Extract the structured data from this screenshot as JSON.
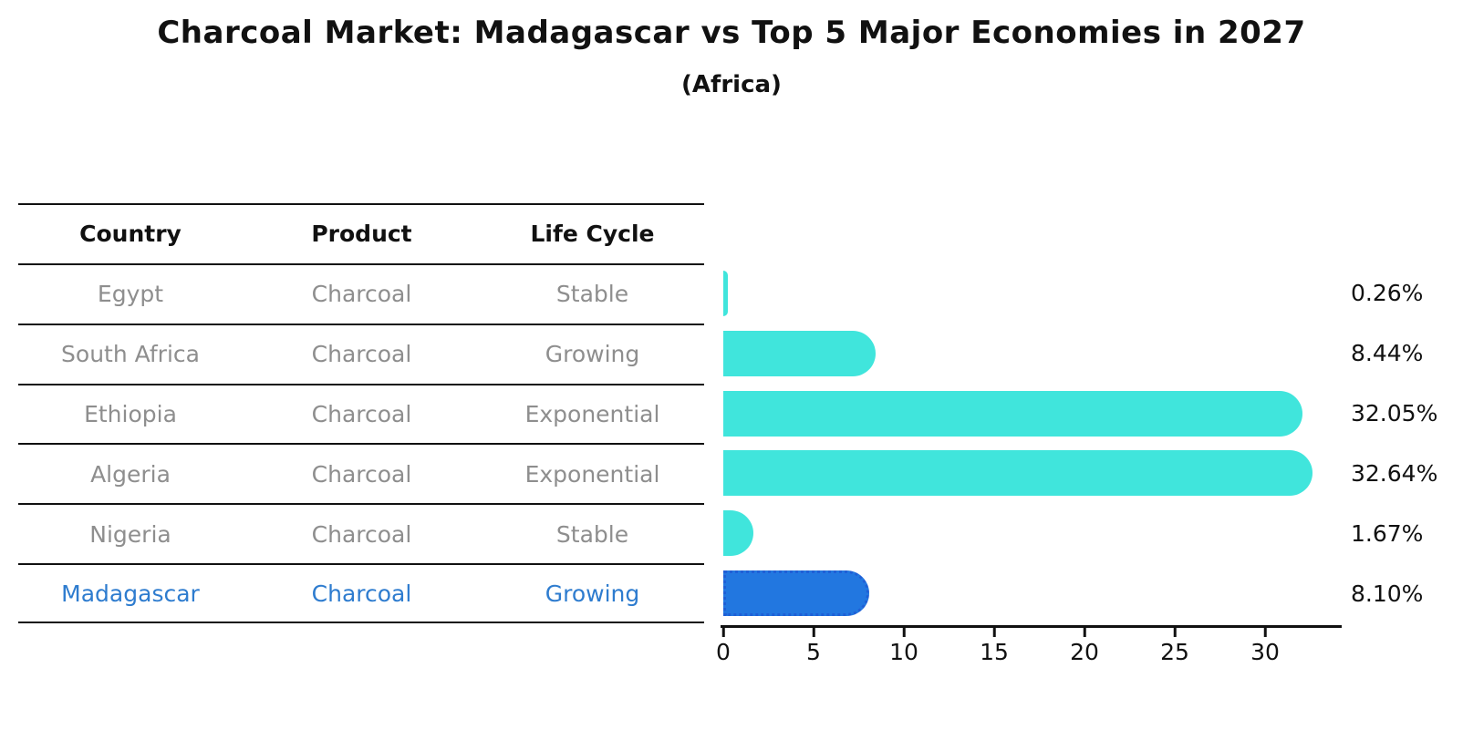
{
  "title": "Charcoal Market: Madagascar vs Top 5 Major Economies in 2027",
  "subtitle": "(Africa)",
  "table": {
    "headers": [
      "Country",
      "Product",
      "Life Cycle"
    ],
    "rows": [
      {
        "country": "Egypt",
        "product": "Charcoal",
        "life_cycle": "Stable",
        "highlight": false
      },
      {
        "country": "South Africa",
        "product": "Charcoal",
        "life_cycle": "Growing",
        "highlight": false
      },
      {
        "country": "Ethiopia",
        "product": "Charcoal",
        "life_cycle": "Exponential",
        "highlight": false
      },
      {
        "country": "Algeria",
        "product": "Charcoal",
        "life_cycle": "Exponential",
        "highlight": false
      },
      {
        "country": "Nigeria",
        "product": "Charcoal",
        "life_cycle": "Stable",
        "highlight": false
      },
      {
        "country": "Madagascar",
        "product": "Charcoal",
        "life_cycle": "Growing",
        "highlight": true
      }
    ]
  },
  "chart_data": {
    "type": "bar",
    "orientation": "horizontal",
    "title": "Charcoal Market: Madagascar vs Top 5 Major Economies in 2027",
    "subtitle": "(Africa)",
    "categories": [
      "Egypt",
      "South Africa",
      "Ethiopia",
      "Algeria",
      "Nigeria",
      "Madagascar"
    ],
    "values": [
      0.26,
      8.44,
      32.05,
      32.64,
      1.67,
      8.1
    ],
    "value_labels": [
      "0.26%",
      "8.44%",
      "32.05%",
      "32.64%",
      "1.67%",
      "8.10%"
    ],
    "x_ticks": [
      0,
      5,
      10,
      15,
      20,
      25,
      30
    ],
    "xlim": [
      0,
      34.2
    ],
    "grid": false,
    "legend": "none",
    "value_label_position": "right-outside",
    "bar_color": "#40e5dc",
    "highlight_color": "#2277e0",
    "highlight_border_color": "#1f5fd6",
    "highlight_index": 5,
    "text_color": "#111111",
    "muted_text_color": "#8e8e8e",
    "highlight_text_color": "#2e7ccf"
  }
}
